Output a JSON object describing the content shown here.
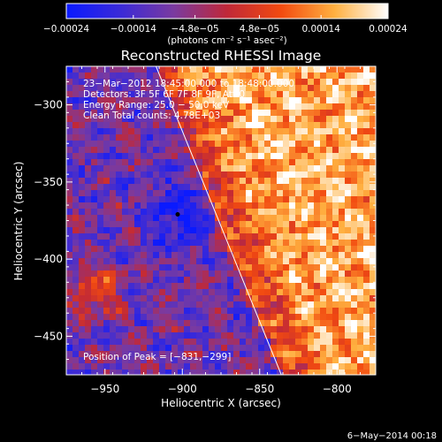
{
  "chart_data": {
    "type": "heatmap",
    "title": "Reconstructed RHESSI Image",
    "xlabel": "Heliocentric X (arcsec)",
    "ylabel": "Heliocentric Y (arcsec)",
    "xlim": [
      -975,
      -775
    ],
    "ylim": [
      -475,
      -275
    ],
    "xticks": [
      -950,
      -900,
      -850,
      -800
    ],
    "yticks": [
      -300,
      -350,
      -400,
      -450
    ],
    "xtick_labels": [
      "−950",
      "−900",
      "−850",
      "−800"
    ],
    "ytick_labels": [
      "−300",
      "−350",
      "−400",
      "−450"
    ],
    "colorbar": {
      "range": [
        -0.00024,
        0.00024
      ],
      "tick_labels": [
        "−0.00024",
        "−0.00014",
        "−4.8e−05",
        "4.8e−05",
        "0.00014",
        "0.00024"
      ],
      "tick_values": [
        -0.00024,
        -0.00014,
        -4.8e-05,
        4.8e-05,
        0.00014,
        0.00024
      ],
      "unit_label": "(photons cm⁻² s⁻¹ asec⁻²)",
      "colors": [
        "#0a1aff",
        "#3a2ad8",
        "#7a3aa0",
        "#c02838",
        "#f24a10",
        "#ffb040",
        "#ffffff"
      ]
    },
    "info_lines": [
      "23−Mar−2012 18:45:00.000 to 18:48:00.000",
      "Detectors: 3F 5F 6F 7F 8F 9F, Att 0",
      "Energy Range: 25.0 − 50.0 keV",
      "Clean     Total counts: 4.78E+03"
    ],
    "peak_label": "Position of Peak = [−831,−299]",
    "peak_position": [
      -831,
      -299
    ],
    "marker_position": [
      -903,
      -371
    ],
    "limb_line": [
      [
        -917,
        -275
      ],
      [
        -836,
        -475
      ]
    ],
    "grid": false,
    "footer": "6−May−2014 00:18"
  }
}
